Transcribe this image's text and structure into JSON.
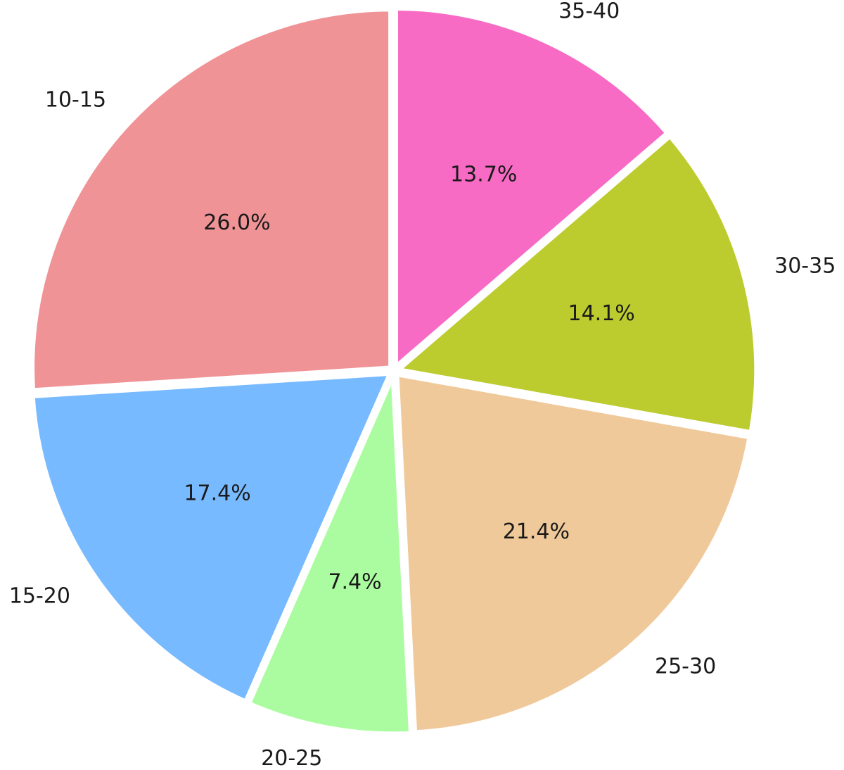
{
  "chart_data": {
    "type": "pie",
    "start_angle_deg": 90,
    "direction": "clockwise",
    "slices": [
      {
        "label": "35-40",
        "value": 13.7,
        "pct_label": "13.7%",
        "color": "#f76bc5"
      },
      {
        "label": "30-35",
        "value": 14.1,
        "pct_label": "14.1%",
        "color": "#bccc2f"
      },
      {
        "label": "25-30",
        "value": 21.4,
        "pct_label": "21.4%",
        "color": "#f0c99a"
      },
      {
        "label": "20-25",
        "value": 7.4,
        "pct_label": "7.4%",
        "color": "#abfca0"
      },
      {
        "label": "15-20",
        "value": 17.4,
        "pct_label": "17.4%",
        "color": "#78baff"
      },
      {
        "label": "10-15",
        "value": 26.0,
        "pct_label": "26.0%",
        "color": "#f09396"
      }
    ]
  }
}
